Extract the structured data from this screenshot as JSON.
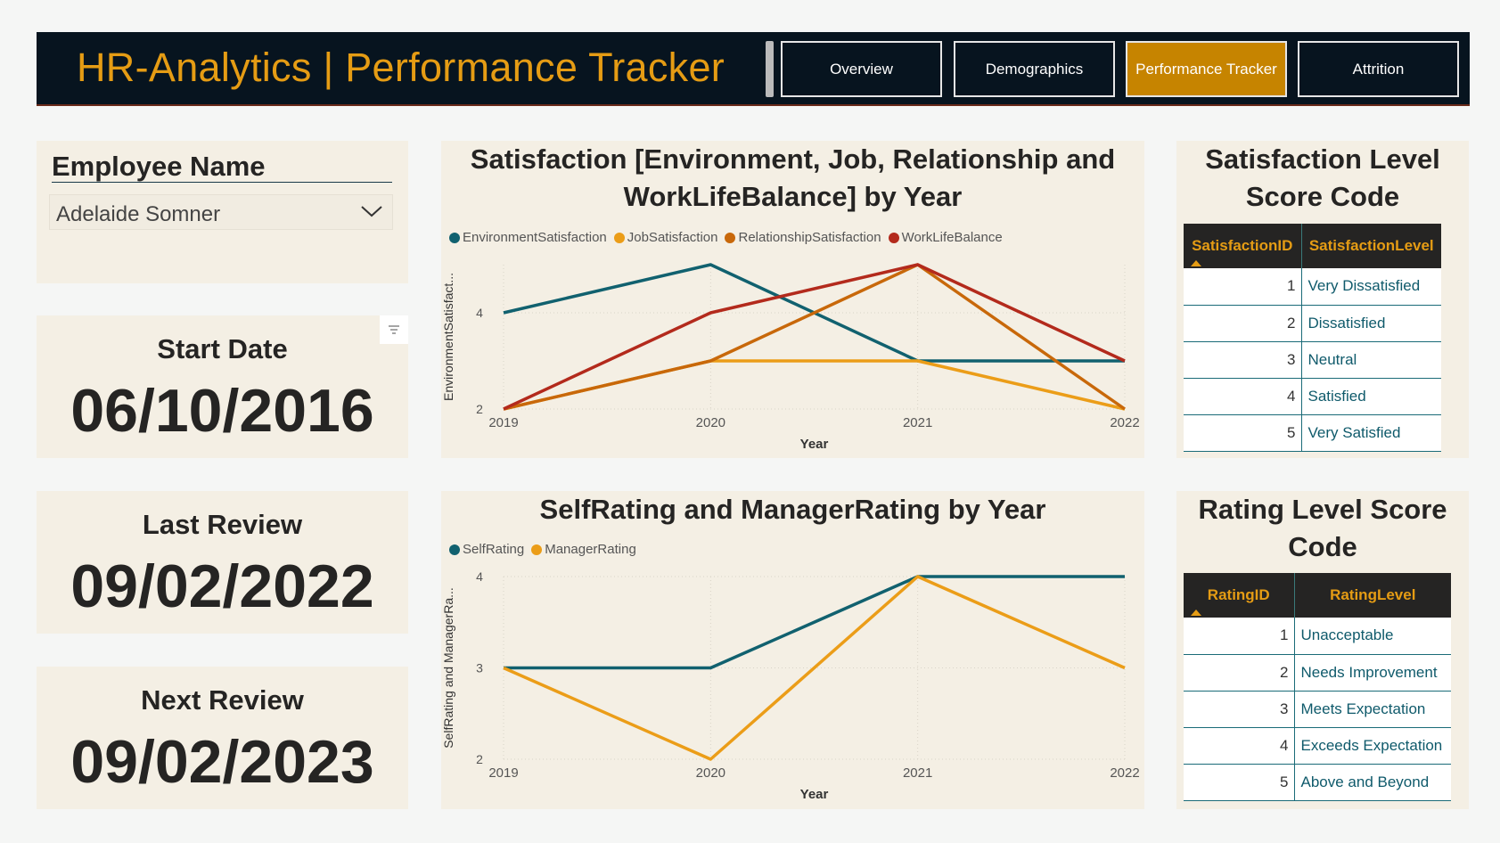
{
  "header": {
    "title": "HR-Analytics | Performance Tracker",
    "nav": [
      "Overview",
      "Demographics",
      "Performance Tracker",
      "Attrition"
    ],
    "active_nav": "Performance Tracker"
  },
  "slicer": {
    "label": "Employee Name",
    "value": "Adelaide Somner"
  },
  "kpis": {
    "start_date_label": "Start Date",
    "start_date": "06/10/2016",
    "last_review_label": "Last Review",
    "last_review": "09/02/2022",
    "next_review_label": "Next Review",
    "next_review": "09/02/2023"
  },
  "chart_data": [
    {
      "type": "line",
      "title": "Satisfaction [Environment, Job, Relationship and WorkLifeBalance] by Year",
      "xlabel": "Year",
      "ylabel": "EnvironmentSatisfact...",
      "x": [
        "2019",
        "2020",
        "2021",
        "2022"
      ],
      "ylim": [
        2,
        5
      ],
      "yticks": [
        2,
        4
      ],
      "series": [
        {
          "name": "EnvironmentSatisfaction",
          "color": "#11616f",
          "values": [
            4,
            5,
            3,
            3
          ]
        },
        {
          "name": "JobSatisfaction",
          "color": "#eb9d18",
          "values": [
            2,
            3,
            3,
            2
          ]
        },
        {
          "name": "RelationshipSatisfaction",
          "color": "#c8680a",
          "values": [
            2,
            3,
            5,
            2
          ]
        },
        {
          "name": "WorkLifeBalance",
          "color": "#b32a1c",
          "values": [
            2,
            4,
            5,
            3
          ]
        }
      ],
      "legend": "top-left",
      "grid": true
    },
    {
      "type": "line",
      "title": "SelfRating and ManagerRating by Year",
      "xlabel": "Year",
      "ylabel": "SelfRating and ManagerRa...",
      "x": [
        "2019",
        "2020",
        "2021",
        "2022"
      ],
      "ylim": [
        2,
        4
      ],
      "yticks": [
        2,
        3,
        4
      ],
      "series": [
        {
          "name": "SelfRating",
          "color": "#11616f",
          "values": [
            3,
            3,
            4,
            4
          ]
        },
        {
          "name": "ManagerRating",
          "color": "#eb9d18",
          "values": [
            3,
            2,
            4,
            3
          ]
        }
      ],
      "legend": "top-left",
      "grid": true
    }
  ],
  "satisfaction_table": {
    "title": "Satisfaction Level Score Code",
    "headers": [
      "SatisfactionID",
      "SatisfactionLevel"
    ],
    "rows": [
      [
        "1",
        "Very Dissatisfied"
      ],
      [
        "2",
        "Dissatisfied"
      ],
      [
        "3",
        "Neutral"
      ],
      [
        "4",
        "Satisfied"
      ],
      [
        "5",
        "Very Satisfied"
      ]
    ]
  },
  "rating_table": {
    "title": "Rating Level Score Code",
    "headers": [
      "RatingID",
      "RatingLevel"
    ],
    "rows": [
      [
        "1",
        "Unacceptable"
      ],
      [
        "2",
        "Needs Improvement"
      ],
      [
        "3",
        "Meets Expectation"
      ],
      [
        "4",
        "Exceeds Expectation"
      ],
      [
        "5",
        "Above and Beyond"
      ]
    ]
  }
}
